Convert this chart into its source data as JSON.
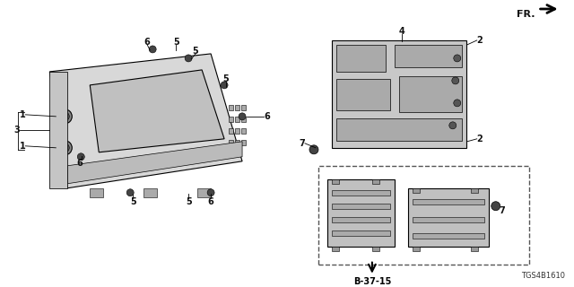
{
  "bg_color": "#ffffff",
  "line_color": "#000000",
  "fr_arrow_text": "FR.",
  "diagram_id": "TGS4B1610",
  "ref_label": "B-37-15"
}
